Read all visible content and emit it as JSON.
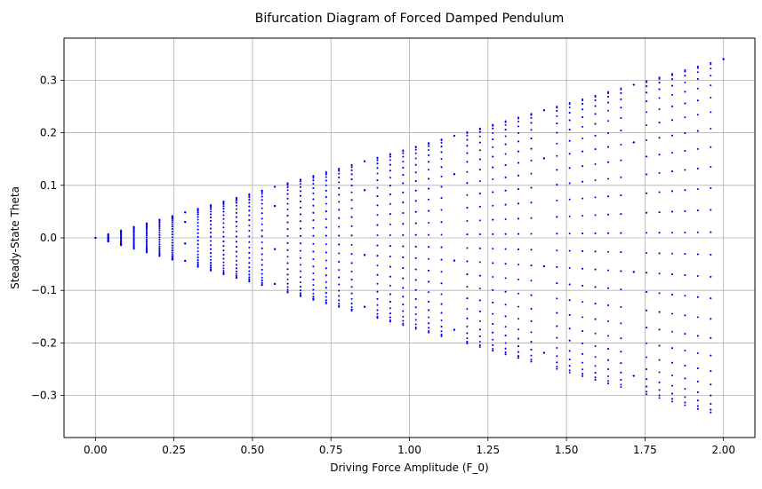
{
  "chart_data": {
    "type": "scatter",
    "title": "Bifurcation Diagram of Forced Damped Pendulum",
    "xlabel": "Driving Force Amplitude (F_0)",
    "ylabel": "Steady-State Theta",
    "xlim": [
      -0.1,
      2.1
    ],
    "ylim": [
      -0.38,
      0.38
    ],
    "xticks": [
      0.0,
      0.25,
      0.5,
      0.75,
      1.0,
      1.25,
      1.5,
      1.75,
      2.0
    ],
    "xtick_labels": [
      "0.00",
      "0.25",
      "0.50",
      "0.75",
      "1.00",
      "1.25",
      "1.50",
      "1.75",
      "2.00"
    ],
    "yticks": [
      -0.3,
      -0.2,
      -0.1,
      0.0,
      0.1,
      0.2,
      0.3
    ],
    "ytick_labels": [
      "−0.3",
      "−0.2",
      "−0.1",
      "0.0",
      "0.1",
      "0.2",
      "0.3"
    ],
    "grid": true,
    "marker_color": "#0000ff",
    "x_start": 0.0,
    "x_stop": 2.0,
    "x_count": 50,
    "envelope_slope": 0.17,
    "samples_per_x": 40
  }
}
